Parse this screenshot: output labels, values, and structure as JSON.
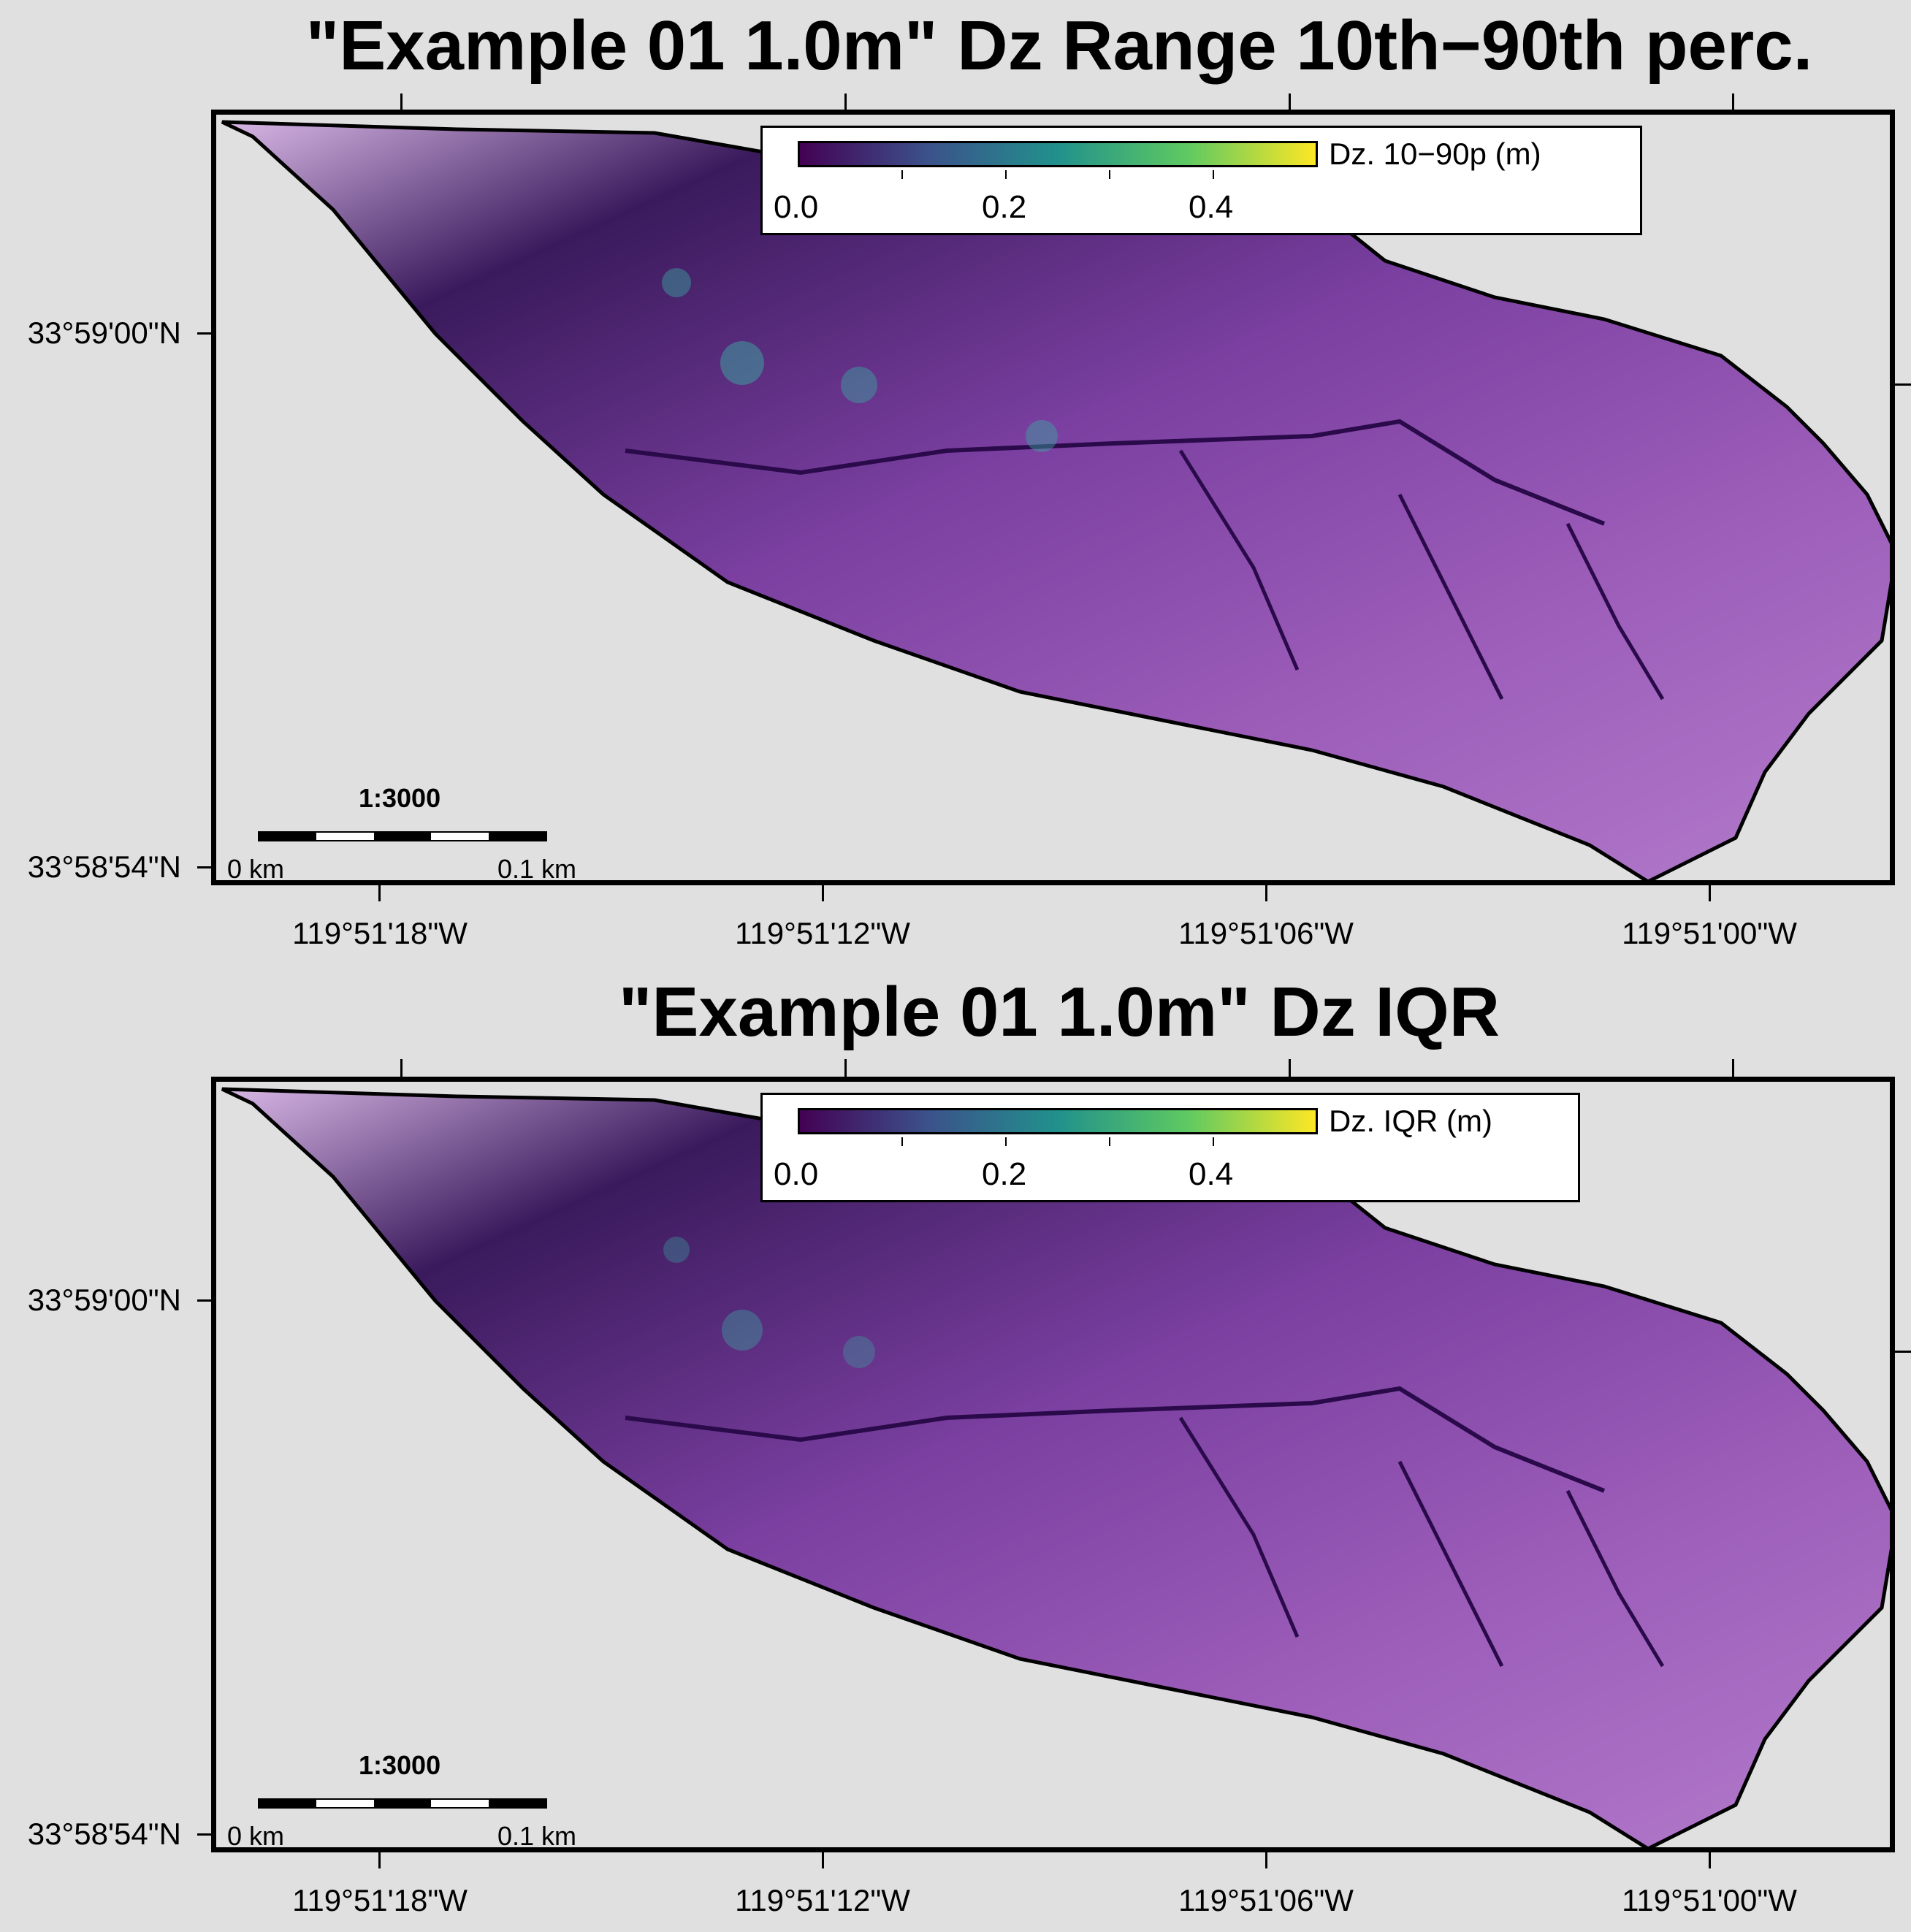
{
  "panels": [
    {
      "title": "\"Example 01 1.0m\" Dz Range 10th−90th perc.",
      "colorbar": {
        "label": "Dz. 10−90p (m)",
        "ticks": [
          "0.0",
          "0.2",
          "0.4"
        ],
        "range": [
          0.0,
          0.5
        ],
        "colormap": [
          "#440154",
          "#3b528b",
          "#21918c",
          "#5ec962",
          "#fde725"
        ]
      },
      "scale": {
        "ratio": "1:3000",
        "start": "0 km",
        "end": "0.1 km"
      },
      "lat_labels": [
        "33°59'00\"N",
        "33°58'54\"N"
      ],
      "lon_labels": [
        "119°51'18\"W",
        "119°51'12\"W",
        "119°51'06\"W",
        "119°51'00\"W"
      ]
    },
    {
      "title": "\"Example 01 1.0m\" Dz IQR",
      "colorbar": {
        "label": "Dz. IQR (m)",
        "ticks": [
          "0.0",
          "0.2",
          "0.4"
        ],
        "range": [
          0.0,
          0.5
        ],
        "colormap": [
          "#440154",
          "#3b528b",
          "#21918c",
          "#5ec962",
          "#fde725"
        ]
      },
      "scale": {
        "ratio": "1:3000",
        "start": "0 km",
        "end": "0.1 km"
      },
      "lat_labels": [
        "33°59'00\"N",
        "33°58'54\"N"
      ],
      "lon_labels": [
        "119°51'18\"W",
        "119°51'12\"W",
        "119°51'06\"W",
        "119°51'00\"W"
      ]
    }
  ],
  "colors": {
    "background": "#e0e0e0",
    "terrain_purple": "#9b5cb8",
    "terrain_dark": "#3a1a5c",
    "terrain_light": "#d9b8e6",
    "terrain_teal": "#3aa7a0"
  }
}
